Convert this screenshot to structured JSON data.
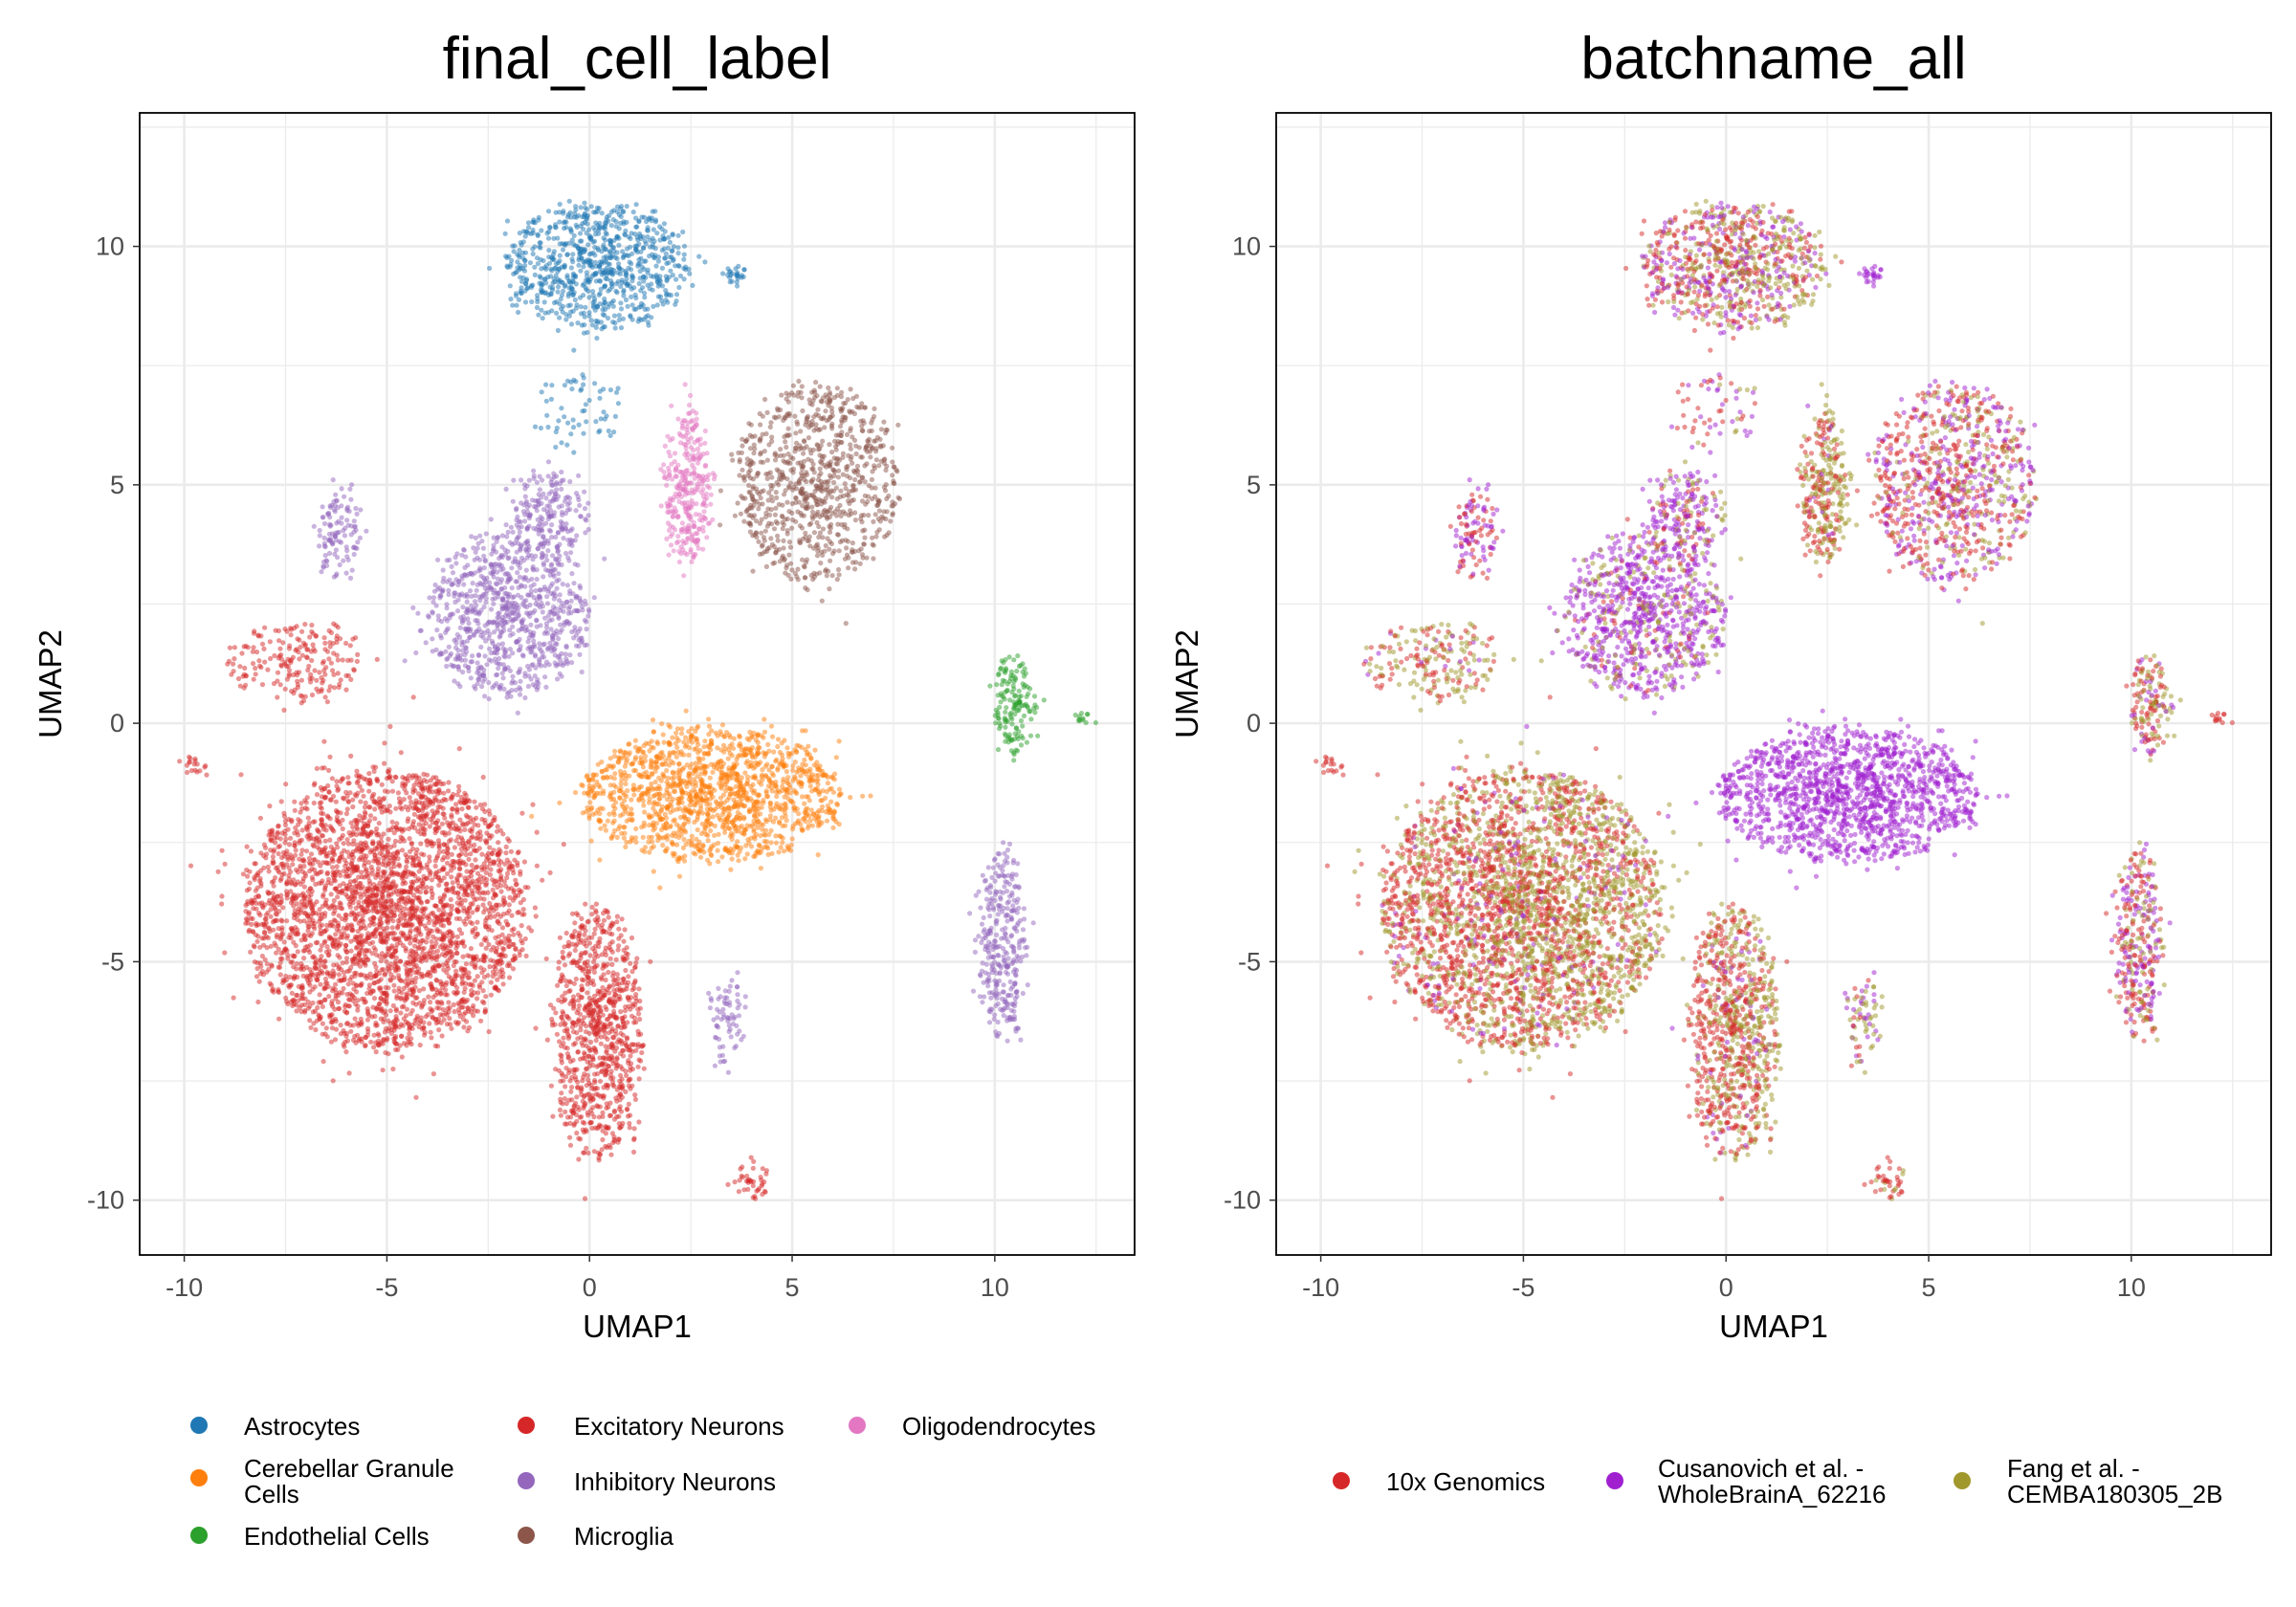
{
  "chart_data": [
    {
      "type": "scatter",
      "title": "final_cell_label",
      "xlabel": "UMAP1",
      "ylabel": "UMAP2",
      "xlim": [
        -11.1,
        13.45
      ],
      "ylim": [
        -11.15,
        12.8
      ],
      "xticks": [
        -10,
        -5,
        0,
        5,
        10
      ],
      "yticks": [
        -10,
        -5,
        0,
        5,
        10
      ],
      "xtick_labels": [
        "-10",
        "-5",
        "0",
        "5",
        "10"
      ],
      "ytick_labels": [
        "-10",
        "-5",
        "0",
        "5",
        "10"
      ],
      "grid": true,
      "legend_position": "bottom",
      "color_by": "cell_type",
      "legend": [
        {
          "label": "Astrocytes",
          "color": "#1f77b4"
        },
        {
          "label": "Cerebellar Granule Cells",
          "color": "#ff7f0e"
        },
        {
          "label": "Endothelial Cells",
          "color": "#2ca02c"
        },
        {
          "label": "Excitatory Neurons",
          "color": "#d62728"
        },
        {
          "label": "Inhibitory Neurons",
          "color": "#9467bd"
        },
        {
          "label": "Microglia",
          "color": "#8c564b"
        },
        {
          "label": "Oligodendrocytes",
          "color": "#e377c2"
        }
      ]
    },
    {
      "type": "scatter",
      "title": "batchname_all",
      "xlabel": "UMAP1",
      "ylabel": "UMAP2",
      "xlim": [
        -11.1,
        13.45
      ],
      "ylim": [
        -11.15,
        12.8
      ],
      "xticks": [
        -10,
        -5,
        0,
        5,
        10
      ],
      "yticks": [
        -10,
        -5,
        0,
        5,
        10
      ],
      "xtick_labels": [
        "-10",
        "-5",
        "0",
        "5",
        "10"
      ],
      "ytick_labels": [
        "-10",
        "-5",
        "0",
        "5",
        "10"
      ],
      "grid": true,
      "legend_position": "bottom",
      "color_by": "batch",
      "legend": [
        {
          "label": "10x Genomics",
          "color": "#d62728"
        },
        {
          "label": "Cusanovich et al. - WholeBrainA_62216",
          "label_lines": [
            "Cusanovich et al. -",
            "WholeBrainA_62216"
          ],
          "color": "#a020d0"
        },
        {
          "label": "Fang et al. - CEMBA180305_2B",
          "label_lines": [
            "Fang et al. -",
            "CEMBA180305_2B"
          ],
          "color": "#a0982c"
        }
      ]
    }
  ],
  "clusters": [
    {
      "cell_type": "Astrocytes",
      "center": [
        0.2,
        9.6
      ],
      "spread": [
        2.3,
        1.3
      ],
      "n": 800,
      "batch_mix": [
        0.35,
        0.3,
        0.35
      ]
    },
    {
      "cell_type": "Astrocytes",
      "center": [
        -0.3,
        6.6
      ],
      "spread": [
        1.2,
        1.0
      ],
      "n": 60,
      "batch_mix": [
        0.4,
        0.5,
        0.1
      ]
    },
    {
      "cell_type": "Astrocytes",
      "center": [
        3.6,
        9.4
      ],
      "spread": [
        0.3,
        0.15
      ],
      "n": 25,
      "batch_mix": [
        0,
        1,
        0
      ]
    },
    {
      "cell_type": "Oligodendrocytes",
      "center": [
        2.4,
        5.0
      ],
      "spread": [
        0.6,
        1.6
      ],
      "n": 300,
      "batch_mix": [
        0.45,
        0.05,
        0.5
      ]
    },
    {
      "cell_type": "Microglia",
      "center": [
        5.6,
        5.0
      ],
      "spread": [
        2.0,
        2.1
      ],
      "n": 850,
      "batch_mix": [
        0.45,
        0.35,
        0.2
      ]
    },
    {
      "cell_type": "Inhibitory Neurons",
      "center": [
        -2.0,
        2.3
      ],
      "spread": [
        2.0,
        1.7
      ],
      "n": 850,
      "batch_mix": [
        0.08,
        0.72,
        0.2
      ]
    },
    {
      "cell_type": "Inhibitory Neurons",
      "center": [
        -1.0,
        4.4
      ],
      "spread": [
        1.0,
        0.9
      ],
      "n": 200,
      "batch_mix": [
        0.2,
        0.6,
        0.2
      ]
    },
    {
      "cell_type": "Inhibitory Neurons",
      "center": [
        -6.2,
        4.0
      ],
      "spread": [
        0.5,
        1.0
      ],
      "n": 110,
      "batch_mix": [
        0.5,
        0.5,
        0
      ]
    },
    {
      "cell_type": "Inhibitory Neurons",
      "center": [
        10.2,
        -4.6
      ],
      "spread": [
        0.6,
        2.0
      ],
      "n": 320,
      "batch_mix": [
        0.45,
        0.35,
        0.2
      ]
    },
    {
      "cell_type": "Inhibitory Neurons",
      "center": [
        3.4,
        -6.3
      ],
      "spread": [
        0.4,
        1.0
      ],
      "n": 70,
      "batch_mix": [
        0.1,
        0.3,
        0.6
      ]
    },
    {
      "cell_type": "Excitatory Neurons",
      "center": [
        -5.0,
        -3.9
      ],
      "spread": [
        3.5,
        2.9
      ],
      "n": 3200,
      "batch_mix": [
        0.5,
        0.05,
        0.45
      ]
    },
    {
      "cell_type": "Excitatory Neurons",
      "center": [
        0.2,
        -6.5
      ],
      "spread": [
        1.1,
        2.7
      ],
      "n": 850,
      "batch_mix": [
        0.55,
        0.05,
        0.4
      ]
    },
    {
      "cell_type": "Excitatory Neurons",
      "center": [
        -7.3,
        1.3
      ],
      "spread": [
        1.6,
        0.8
      ],
      "n": 200,
      "batch_mix": [
        0.45,
        0.1,
        0.45
      ]
    },
    {
      "cell_type": "Excitatory Neurons",
      "center": [
        -9.8,
        -0.9
      ],
      "spread": [
        0.3,
        0.2
      ],
      "n": 18,
      "batch_mix": [
        1,
        0,
        0
      ]
    },
    {
      "cell_type": "Excitatory Neurons",
      "center": [
        4.0,
        -9.6
      ],
      "spread": [
        0.5,
        0.4
      ],
      "n": 40,
      "batch_mix": [
        0.8,
        0,
        0.2
      ]
    },
    {
      "cell_type": "Cerebellar Granule Cells",
      "center": [
        3.0,
        -1.5
      ],
      "spread": [
        3.2,
        1.4
      ],
      "n": 1400,
      "batch_mix": [
        0,
        1,
        0
      ]
    },
    {
      "cell_type": "Endothelial Cells",
      "center": [
        10.5,
        0.4
      ],
      "spread": [
        0.5,
        1.1
      ],
      "n": 150,
      "batch_mix": [
        0.4,
        0.2,
        0.4
      ]
    },
    {
      "cell_type": "Endothelial Cells",
      "center": [
        12.2,
        0.1
      ],
      "spread": [
        0.2,
        0.1
      ],
      "n": 12,
      "batch_mix": [
        1,
        0,
        0
      ]
    }
  ]
}
